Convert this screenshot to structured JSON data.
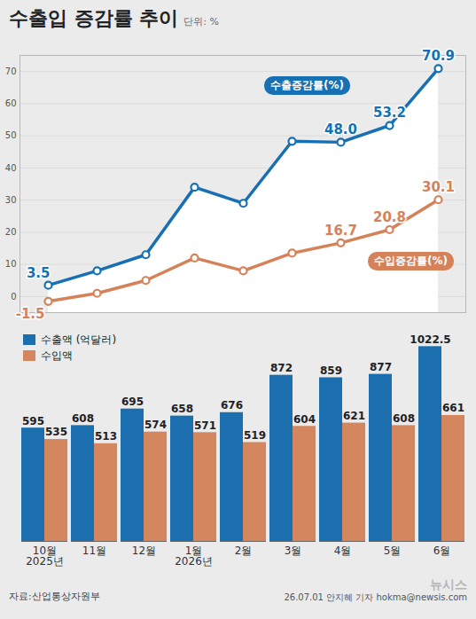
{
  "title": "수출입 증감률 추이",
  "subtitle": "단위: %",
  "source": "자료:산업통상자원부",
  "credit": "26.07.01 안지혜 기자 hokma@newsis.com",
  "watermark": "뉴시스",
  "chart_data": [
    {
      "type": "line",
      "categories": [
        "10월\n2025년",
        "11월",
        "12월",
        "1월\n2026년",
        "2월",
        "3월",
        "4월",
        "5월",
        "6월"
      ],
      "series": [
        {
          "name": "수출증감률(%)",
          "color": "#1670b3",
          "marker": "circle",
          "values": [
            3.5,
            8,
            13,
            34,
            29,
            48.3,
            48.0,
            53.2,
            70.9
          ],
          "value_labels": [
            "3.5",
            null,
            null,
            null,
            null,
            null,
            "48.0",
            "53.2",
            "70.9"
          ]
        },
        {
          "name": "수입증감률(%)",
          "color": "#d5825a",
          "marker": "circle",
          "values": [
            -1.5,
            1,
            5,
            12,
            8,
            13.5,
            16.7,
            20.8,
            30.1
          ],
          "value_labels": [
            "-1.5",
            null,
            null,
            null,
            null,
            null,
            "16.7",
            "20.8",
            "30.1"
          ]
        }
      ],
      "ylim": [
        -5,
        75
      ],
      "yticks": [
        0,
        10,
        20,
        30,
        40,
        50,
        60,
        70
      ],
      "grid": true,
      "data_labels": true,
      "tick_labels": "y"
    },
    {
      "type": "bar",
      "categories": [
        "10월\n2025년",
        "11월",
        "12월",
        "1월\n2026년",
        "2월",
        "3월",
        "4월",
        "5월",
        "6월"
      ],
      "series": [
        {
          "name": "수출액 (억달러)",
          "color": "#1b6fae",
          "values": [
            595,
            608,
            695,
            658,
            676,
            872,
            859,
            877,
            1022.5
          ]
        },
        {
          "name": "수입액",
          "color": "#d4875f",
          "values": [
            535,
            513,
            574,
            571,
            519,
            604,
            621,
            608,
            661
          ]
        }
      ],
      "ylim": [
        0,
        1080
      ],
      "data_labels": true,
      "legend": "top-left",
      "tick_labels": "x"
    }
  ]
}
